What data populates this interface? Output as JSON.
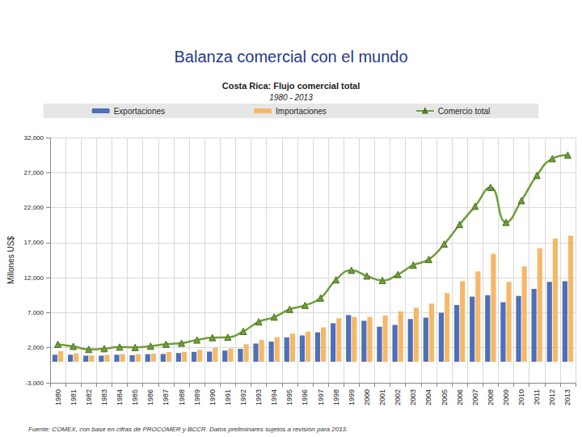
{
  "chart_data": {
    "type": "bar",
    "title": "Balanza comercial con el mundo",
    "subtitle": [
      "Costa Rica: Flujo comercial total",
      "1980 - 2013"
    ],
    "ylabel": "Millones US$",
    "source": "Fuente: COMEX, con base en cifras de PROCOMER y BCCR. Datos preliminares sujetos a revisión para 2013.",
    "categories": [
      "1980",
      "1981",
      "1982",
      "1983",
      "1984",
      "1985",
      "1986",
      "1987",
      "1988",
      "1989",
      "1990",
      "1991",
      "1992",
      "1993",
      "1994",
      "1995",
      "1996",
      "1997",
      "1998",
      "1999",
      "2000",
      "2001",
      "2002",
      "2003",
      "2004",
      "2005",
      "2006",
      "2007",
      "2008",
      "2009",
      "2010",
      "2011",
      "2012",
      "2013"
    ],
    "series": [
      {
        "name": "Exportaciones",
        "type": "bar",
        "color": "#4f6fb8",
        "values": [
          1000,
          1000,
          870,
          870,
          1000,
          940,
          1080,
          1110,
          1250,
          1410,
          1450,
          1600,
          1840,
          2600,
          2880,
          3480,
          3760,
          4200,
          5500,
          6660,
          5850,
          5000,
          5260,
          6100,
          6300,
          7000,
          8100,
          9300,
          9500,
          8500,
          9400,
          10400,
          11400,
          11500
        ]
      },
      {
        "name": "Importaciones",
        "type": "bar",
        "color": "#f5b86a",
        "values": [
          1500,
          1200,
          900,
          1000,
          1100,
          1100,
          1150,
          1400,
          1400,
          1700,
          2000,
          1900,
          2500,
          3100,
          3500,
          4000,
          4300,
          4900,
          6200,
          6400,
          6400,
          6600,
          7200,
          7700,
          8300,
          9800,
          11500,
          12900,
          15400,
          11400,
          13600,
          16200,
          17600,
          18000
        ]
      },
      {
        "name": "Comercio total",
        "type": "line",
        "color": "#6f9e3a",
        "marker": "triangle",
        "line_style": "smooth",
        "values": [
          2500,
          2200,
          1770,
          1870,
          2100,
          2040,
          2230,
          2510,
          2650,
          3110,
          3450,
          3500,
          4340,
          5700,
          6380,
          7480,
          8060,
          9100,
          11700,
          13060,
          12250,
          11600,
          12460,
          13800,
          14600,
          16800,
          19600,
          22200,
          24900,
          19900,
          23000,
          26600,
          29000,
          29500
        ]
      }
    ],
    "ylim": [
      -3000,
      32000
    ],
    "yticks": [
      {
        "value": -3000,
        "label": "-3,000"
      },
      {
        "value": 2000,
        "label": "2,000"
      },
      {
        "value": 7000,
        "label": "7,000"
      },
      {
        "value": 12000,
        "label": "12,000"
      },
      {
        "value": 17000,
        "label": "17,000"
      },
      {
        "value": 22000,
        "label": "22,000"
      },
      {
        "value": 27000,
        "label": "27,000"
      },
      {
        "value": 32000,
        "label": "32,000"
      }
    ],
    "grid": true,
    "legend": "top"
  }
}
